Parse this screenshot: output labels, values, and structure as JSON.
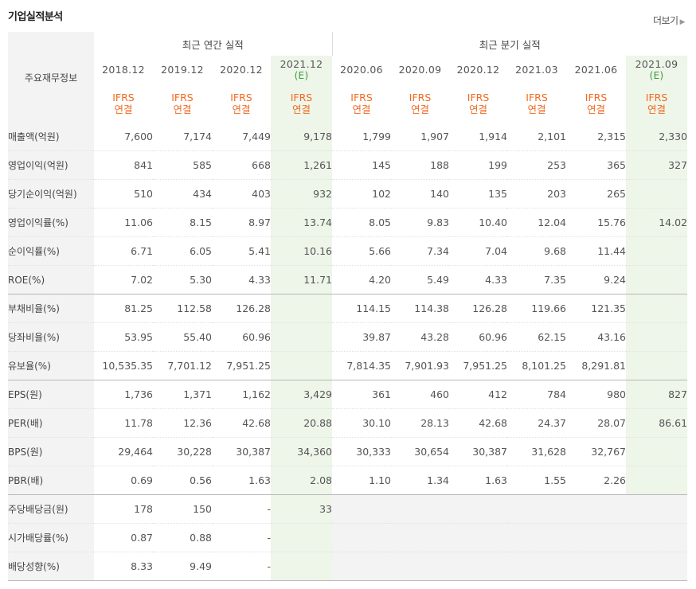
{
  "title": "기업실적분석",
  "more_label": "더보기",
  "header": {
    "label_column": "주요재무정보",
    "annual_group": "최근 연간 실적",
    "quarter_group": "최근 분기 실적",
    "periods": [
      {
        "date": "2018.12",
        "est": ""
      },
      {
        "date": "2019.12",
        "est": ""
      },
      {
        "date": "2020.12",
        "est": ""
      },
      {
        "date": "2021.12",
        "est": "(E)"
      },
      {
        "date": "2020.06",
        "est": ""
      },
      {
        "date": "2020.09",
        "est": ""
      },
      {
        "date": "2020.12",
        "est": ""
      },
      {
        "date": "2021.03",
        "est": ""
      },
      {
        "date": "2021.06",
        "est": ""
      },
      {
        "date": "2021.09",
        "est": "(E)"
      }
    ],
    "ifrs_line1": "IFRS",
    "ifrs_line2": "연결"
  },
  "rows": [
    {
      "label": "매출액(억원)",
      "values": [
        "7,600",
        "7,174",
        "7,449",
        "9,178",
        "1,799",
        "1,907",
        "1,914",
        "2,101",
        "2,315",
        "2,330"
      ]
    },
    {
      "label": "영업이익(억원)",
      "values": [
        "841",
        "585",
        "668",
        "1,261",
        "145",
        "188",
        "199",
        "253",
        "365",
        "327"
      ]
    },
    {
      "label": "당기순이익(억원)",
      "values": [
        "510",
        "434",
        "403",
        "932",
        "102",
        "140",
        "135",
        "203",
        "265",
        ""
      ]
    },
    {
      "label": "영업이익률(%)",
      "values": [
        "11.06",
        "8.15",
        "8.97",
        "13.74",
        "8.05",
        "9.83",
        "10.40",
        "12.04",
        "15.76",
        "14.02"
      ]
    },
    {
      "label": "순이익률(%)",
      "values": [
        "6.71",
        "6.05",
        "5.41",
        "10.16",
        "5.66",
        "7.34",
        "7.04",
        "9.68",
        "11.44",
        ""
      ]
    },
    {
      "label": "ROE(%)",
      "values": [
        "7.02",
        "5.30",
        "4.33",
        "11.71",
        "4.20",
        "5.49",
        "4.33",
        "7.35",
        "9.24",
        ""
      ]
    },
    {
      "label": "부채비율(%)",
      "values": [
        "81.25",
        "112.58",
        "126.28",
        "",
        "114.15",
        "114.38",
        "126.28",
        "119.66",
        "121.35",
        ""
      ]
    },
    {
      "label": "당좌비율(%)",
      "values": [
        "53.95",
        "55.40",
        "60.96",
        "",
        "39.87",
        "43.28",
        "60.96",
        "62.15",
        "43.16",
        ""
      ]
    },
    {
      "label": "유보율(%)",
      "values": [
        "10,535.35",
        "7,701.12",
        "7,951.25",
        "",
        "7,814.35",
        "7,901.93",
        "7,951.25",
        "8,101.25",
        "8,291.81",
        ""
      ]
    },
    {
      "label": "EPS(원)",
      "values": [
        "1,736",
        "1,371",
        "1,162",
        "3,429",
        "361",
        "460",
        "412",
        "784",
        "980",
        "827"
      ]
    },
    {
      "label": "PER(배)",
      "values": [
        "11.78",
        "12.36",
        "42.68",
        "20.88",
        "30.10",
        "28.13",
        "42.68",
        "24.37",
        "28.07",
        "86.61"
      ]
    },
    {
      "label": "BPS(원)",
      "values": [
        "29,464",
        "30,228",
        "30,387",
        "34,360",
        "30,333",
        "30,654",
        "30,387",
        "31,628",
        "32,767",
        ""
      ]
    },
    {
      "label": "PBR(배)",
      "values": [
        "0.69",
        "0.56",
        "1.63",
        "2.08",
        "1.10",
        "1.34",
        "1.63",
        "1.55",
        "2.26",
        ""
      ]
    },
    {
      "label": "주당배당금(원)",
      "values": [
        "178",
        "150",
        "-",
        "33",
        "",
        "",
        "",
        "",
        "",
        ""
      ]
    },
    {
      "label": "시가배당률(%)",
      "values": [
        "0.87",
        "0.88",
        "-",
        "",
        "",
        "",
        "",
        "",
        "",
        ""
      ]
    },
    {
      "label": "배당성향(%)",
      "values": [
        "8.33",
        "9.49",
        "-",
        "",
        "",
        "",
        "",
        "",
        "",
        ""
      ]
    }
  ]
}
